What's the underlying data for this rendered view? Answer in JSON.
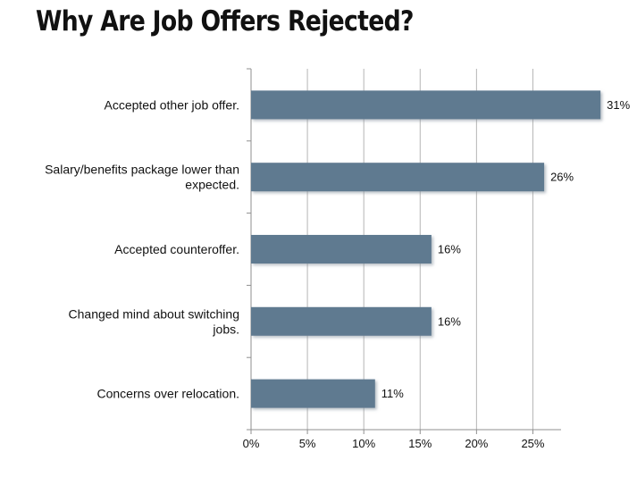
{
  "chart_data": {
    "type": "bar",
    "orientation": "horizontal",
    "title": "Why Are Job Offers Rejected?",
    "categories": [
      [
        "Accepted other job offer."
      ],
      [
        "Salary/benefits package lower than",
        "expected."
      ],
      [
        "Accepted counteroffer."
      ],
      [
        "Changed mind about switching",
        "jobs."
      ],
      [
        "Concerns over relocation."
      ]
    ],
    "values": [
      31,
      26,
      16,
      16,
      11
    ],
    "value_labels": [
      "31%",
      "26%",
      "16%",
      "16%",
      "11%"
    ],
    "xlim": [
      0,
      27.5
    ],
    "ticks": [
      0,
      5,
      10,
      15,
      20,
      25
    ],
    "tick_labels": [
      "0%",
      "5%",
      "10%",
      "15%",
      "20%",
      "25%"
    ],
    "xlabel": "",
    "ylabel": "",
    "grid": "vertical",
    "legend": "none",
    "colors": {
      "bar": "#5f7a90",
      "bar_shadow": "#b9c1c8",
      "grid": "#b5b5b5",
      "axis": "#8f8f8f",
      "text": "#111111"
    }
  }
}
